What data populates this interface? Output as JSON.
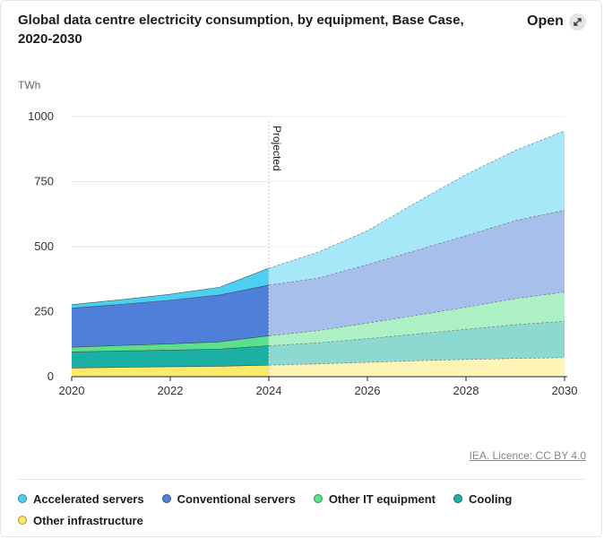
{
  "header": {
    "title": "Global data centre electricity consumption, by equipment, Base Case, 2020-2030",
    "open_label": "Open"
  },
  "footer": {
    "source": "IEA. Licence: CC BY 4.0"
  },
  "chart_data": {
    "type": "area",
    "stacked": true,
    "ylabel": "TWh",
    "ylim": [
      0,
      1000
    ],
    "yticks": [
      0,
      250,
      500,
      750,
      1000
    ],
    "xlim": [
      2020,
      2030
    ],
    "xticks": [
      2020,
      2022,
      2024,
      2026,
      2028,
      2030
    ],
    "x": [
      2020,
      2021,
      2022,
      2023,
      2024,
      2025,
      2026,
      2027,
      2028,
      2029,
      2030
    ],
    "projection_start": 2024,
    "projection_label": "Projected",
    "grid": "horizontal",
    "legend_position": "bottom",
    "series": [
      {
        "name": "Other infrastructure",
        "color": "#fde96a",
        "values": [
          33,
          36,
          38,
          40,
          44,
          49,
          55,
          61,
          66,
          70,
          73
        ]
      },
      {
        "name": "Cooling",
        "color": "#1cb0a4",
        "values": [
          62,
          63,
          64,
          66,
          75,
          81,
          91,
          103,
          116,
          130,
          140
        ]
      },
      {
        "name": "Other IT equipment",
        "color": "#5ce08c",
        "values": [
          18,
          21,
          24,
          28,
          38,
          47,
          60,
          72,
          85,
          100,
          112
        ]
      },
      {
        "name": "Conventional servers",
        "color": "#4f7fd8",
        "values": [
          150,
          158,
          168,
          180,
          195,
          202,
          225,
          250,
          275,
          300,
          315
        ]
      },
      {
        "name": "Accelerated servers",
        "color": "#4ccff0",
        "values": [
          14,
          18,
          23,
          30,
          65,
          100,
          130,
          185,
          235,
          270,
          305
        ]
      }
    ]
  }
}
